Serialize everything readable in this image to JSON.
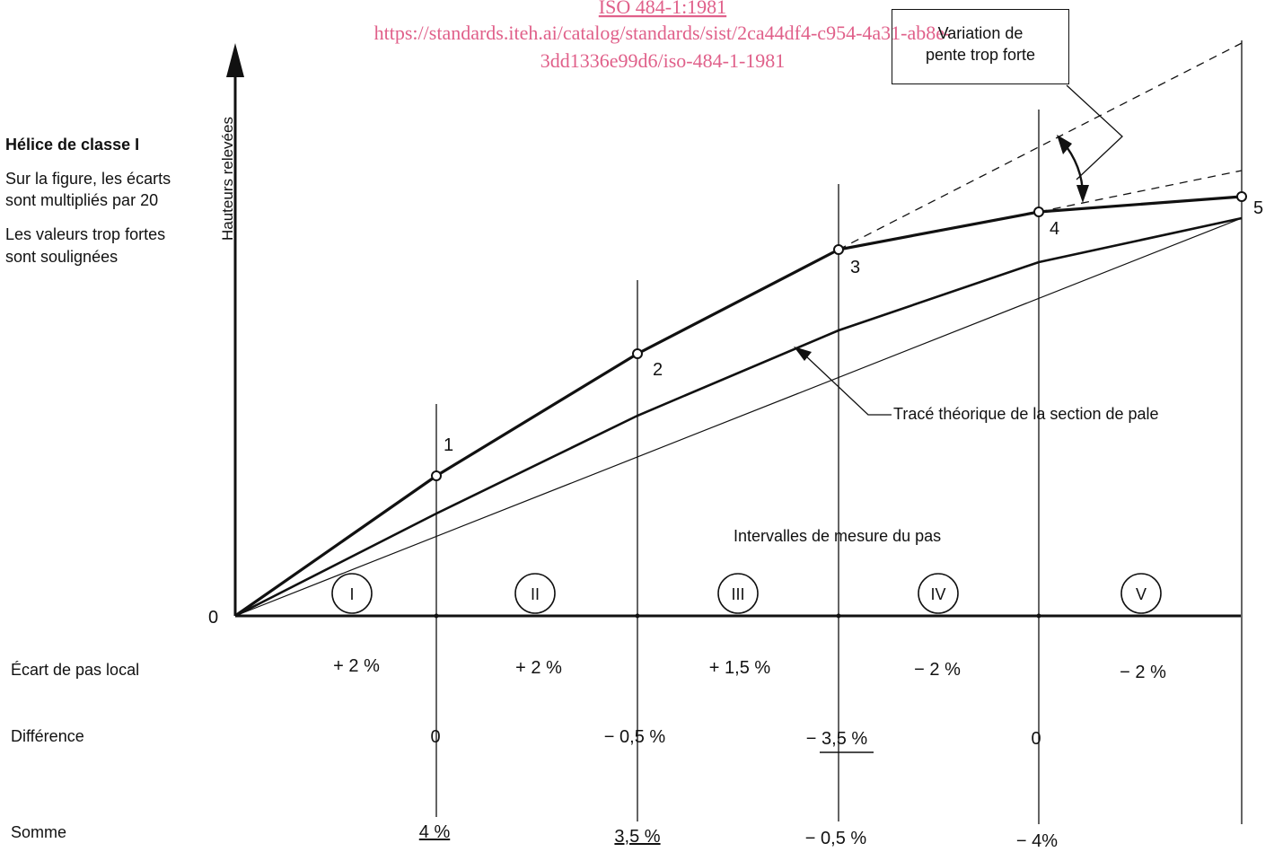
{
  "watermark": {
    "line1": "ISO 484-1:1981",
    "line2": "https://standards.iteh.ai/catalog/standards/sist/2ca44df4-c954-4a31-ab8e-",
    "line3": "3dd1336e99d6/iso-484-1-1981"
  },
  "side_notes": {
    "title": "Hélice de classe I",
    "note1_line1": "Sur la figure, les écarts",
    "note1_line2": "sont multipliés par 20",
    "note2_line1": "Les valeurs trop fortes",
    "note2_line2": "sont soulignées"
  },
  "axis": {
    "y_label": "Hauteurs relevées",
    "origin_label": "0"
  },
  "callouts": {
    "slope_variation_line1": "Variation de",
    "slope_variation_line2": "pente trop forte",
    "theoretical_trace": "Tracé théorique de la section de pale",
    "intervals_title": "Intervalles de mesure du pas"
  },
  "points": [
    "1",
    "2",
    "3",
    "4",
    "5"
  ],
  "intervals": [
    "I",
    "II",
    "III",
    "IV",
    "V"
  ],
  "rows": {
    "local_pitch": {
      "label": "Écart de pas local",
      "values": [
        "+ 2 %",
        "+ 2 %",
        "+ 1,5 %",
        "− 2 %",
        "− 2 %"
      ]
    },
    "difference": {
      "label": "Différence",
      "values": [
        "0",
        "− 0,5 %",
        "− 3,5 %",
        "0"
      ],
      "underlined": [
        false,
        false,
        true,
        false
      ]
    },
    "sum": {
      "label": "Somme",
      "values": [
        "4 %",
        "3,5 %",
        "− 0,5 %",
        "− 4%"
      ],
      "underlined": [
        true,
        true,
        false,
        false
      ]
    }
  }
}
